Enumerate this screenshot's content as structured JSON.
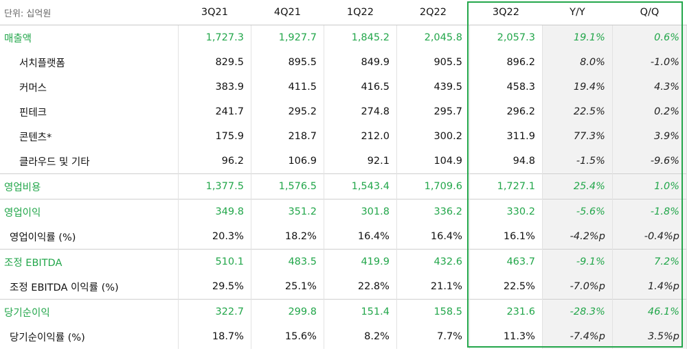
{
  "header": {
    "unit_label": "단위: 십억원",
    "columns": [
      "3Q21",
      "4Q21",
      "1Q22",
      "2Q22",
      "3Q22",
      "Y/Y",
      "Q/Q"
    ]
  },
  "rows": [
    {
      "label": "매출액",
      "values": [
        "1,727.3",
        "1,927.7",
        "1,845.2",
        "2,045.8",
        "2,057.3",
        "19.1%",
        "0.6%"
      ]
    },
    {
      "label": "서치플랫폼",
      "values": [
        "829.5",
        "895.5",
        "849.9",
        "905.5",
        "896.2",
        "8.0%",
        "-1.0%"
      ]
    },
    {
      "label": "커머스",
      "values": [
        "383.9",
        "411.5",
        "416.5",
        "439.5",
        "458.3",
        "19.4%",
        "4.3%"
      ]
    },
    {
      "label": "핀테크",
      "values": [
        "241.7",
        "295.2",
        "274.8",
        "295.7",
        "296.2",
        "22.5%",
        "0.2%"
      ]
    },
    {
      "label": "콘텐츠*",
      "values": [
        "175.9",
        "218.7",
        "212.0",
        "300.2",
        "311.9",
        "77.3%",
        "3.9%"
      ]
    },
    {
      "label": "클라우드 및 기타",
      "values": [
        "96.2",
        "106.9",
        "92.1",
        "104.9",
        "94.8",
        "-1.5%",
        "-9.6%"
      ]
    },
    {
      "label": "영업비용",
      "values": [
        "1,377.5",
        "1,576.5",
        "1,543.4",
        "1,709.6",
        "1,727.1",
        "25.4%",
        "1.0%"
      ]
    },
    {
      "label": "영업이익",
      "values": [
        "349.8",
        "351.2",
        "301.8",
        "336.2",
        "330.2",
        "-5.6%",
        "-1.8%"
      ]
    },
    {
      "label": "영업이익률 (%)",
      "values": [
        "20.3%",
        "18.2%",
        "16.4%",
        "16.4%",
        "16.1%",
        "-4.2%p",
        "-0.4%p"
      ]
    },
    {
      "label": "조정 EBITDA",
      "values": [
        "510.1",
        "483.5",
        "419.9",
        "432.6",
        "463.7",
        "-9.1%",
        "7.2%"
      ]
    },
    {
      "label": "조정 EBITDA 이익률 (%)",
      "values": [
        "29.5%",
        "25.1%",
        "22.8%",
        "21.1%",
        "22.5%",
        "-7.0%p",
        "1.4%p"
      ]
    },
    {
      "label": "당기순이익",
      "values": [
        "322.7",
        "299.8",
        "151.4",
        "158.5",
        "231.6",
        "-28.3%",
        "46.1%"
      ]
    },
    {
      "label": "당기순이익률 (%)",
      "values": [
        "18.7%",
        "15.6%",
        "8.2%",
        "7.7%",
        "11.3%",
        "-7.4%p",
        "3.5%p"
      ]
    }
  ],
  "colors": {
    "accent_green": "#22a64a",
    "change_bg": "#f2f2f2"
  }
}
